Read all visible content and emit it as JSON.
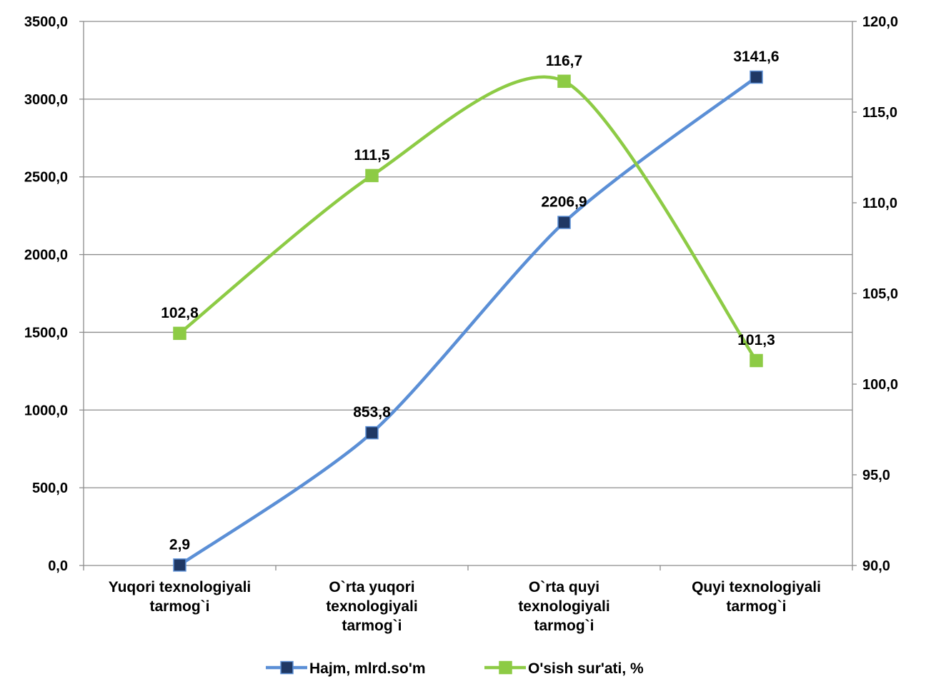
{
  "chart_data": {
    "type": "line",
    "categories": [
      [
        "Yuqori texnologiyali",
        "tarmog`i"
      ],
      [
        "O`rta yuqori",
        "texnologiyali",
        "tarmog`i"
      ],
      [
        "O`rta quyi",
        "texnologiyali",
        "tarmog`i"
      ],
      [
        "Quyi texnologiyali",
        "tarmog`i"
      ]
    ],
    "series": [
      {
        "name": "Hajm, mlrd.so'm",
        "axis": "left",
        "color": "#5B8FD6",
        "marker_color": "#1F3864",
        "values": [
          2.9,
          853.8,
          2206.9,
          3141.6
        ],
        "labels": [
          "2,9",
          "853,8",
          "2206,9",
          "3141,6"
        ]
      },
      {
        "name": "O'sish sur'ati, %",
        "axis": "right",
        "color": "#8DCB45",
        "marker_color": "#8DCB45",
        "values": [
          102.8,
          111.5,
          116.7,
          101.3
        ],
        "labels": [
          "102,8",
          "111,5",
          "116,7",
          "101,3"
        ]
      }
    ],
    "y_left": {
      "range": [
        0,
        3500
      ],
      "ticks": [
        "0,0",
        "500,0",
        "1000,0",
        "1500,0",
        "2000,0",
        "2500,0",
        "3000,0",
        "3500,0"
      ]
    },
    "y_right": {
      "range": [
        90,
        120
      ],
      "ticks": [
        "90,0",
        "95,0",
        "100,0",
        "105,0",
        "110,0",
        "115,0",
        "120,0"
      ]
    },
    "grid": true,
    "legend": "bottom",
    "smooth": true
  }
}
